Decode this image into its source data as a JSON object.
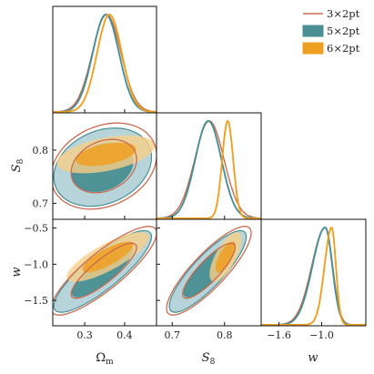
{
  "chart_data": {
    "type": "corner",
    "colors": {
      "3x2pt": "#c96a4f",
      "5x2pt": "#4a8f94",
      "6x2pt": "#f0a020",
      "fill_5x2pt": "#a9cdd2",
      "fill_6x2pt": "#f7cf88"
    },
    "legend": {
      "position": "top-right",
      "entries": [
        {
          "key": "3x2pt",
          "label": "3×2pt",
          "style": "line"
        },
        {
          "key": "5x2pt",
          "label": "5×2pt",
          "style": "patch"
        },
        {
          "key": "6x2pt",
          "label": "6×2pt",
          "style": "patch"
        }
      ]
    },
    "parameters": [
      {
        "key": "om",
        "label": "Ω",
        "sub": "m",
        "range": [
          0.22,
          0.48
        ],
        "ticks": [
          0.3,
          0.4
        ],
        "ticklabels": [
          "0.3",
          "0.4"
        ]
      },
      {
        "key": "s8",
        "label": "S",
        "sub": "8",
        "range": [
          0.67,
          0.87
        ],
        "ticks": [
          0.7,
          0.8
        ],
        "ticklabels": [
          "0.7",
          "0.8"
        ]
      },
      {
        "key": "w",
        "label": "w",
        "sub": "",
        "range": [
          -1.85,
          -0.38
        ],
        "ticks": [
          -1.5,
          -1.0,
          -0.5
        ],
        "ticklabels": [
          "−1.5",
          "−1.0",
          "−0.5"
        ],
        "ticks_diag": [
          -1.6,
          -1.0
        ],
        "ticklabels_diag": [
          "−1.6",
          "−1.0"
        ]
      }
    ],
    "marginals": {
      "om": [
        {
          "series": "3x2pt",
          "mean": 0.355,
          "sigma": 0.036
        },
        {
          "series": "5x2pt",
          "mean": 0.353,
          "sigma": 0.033
        },
        {
          "series": "6x2pt",
          "mean": 0.362,
          "sigma": 0.031
        }
      ],
      "s8": [
        {
          "series": "3x2pt",
          "mean": 0.771,
          "sigma": 0.028
        },
        {
          "series": "5x2pt",
          "mean": 0.769,
          "sigma": 0.025
        },
        {
          "series": "6x2pt",
          "mean": 0.806,
          "sigma": 0.0105
        }
      ],
      "w": [
        {
          "series": "3x2pt",
          "mean": -0.95,
          "sigma": 0.19,
          "skew": 0.55
        },
        {
          "series": "5x2pt",
          "mean": -0.95,
          "sigma": 0.18,
          "skew": 0.55
        },
        {
          "series": "6x2pt",
          "mean": -0.86,
          "sigma": 0.1,
          "skew": 0.6
        }
      ]
    },
    "contours": {
      "s8_om": [
        {
          "series": "5x2pt",
          "center": [
            0.345,
            0.768
          ],
          "sx": 0.05,
          "sy": 0.03,
          "rho": 0.25
        },
        {
          "series": "3x2pt",
          "center": [
            0.348,
            0.77
          ],
          "sx": 0.054,
          "sy": 0.033,
          "rho": 0.25
        },
        {
          "series": "6x2pt",
          "center": [
            0.353,
            0.792
          ],
          "sx": 0.05,
          "sy": 0.0145,
          "rho": 0.45
        }
      ],
      "w_om": [
        {
          "series": "5x2pt",
          "center": [
            0.345,
            -1.1
          ],
          "sx": 0.05,
          "sy": 0.23,
          "rho": 0.85
        },
        {
          "series": "3x2pt",
          "center": [
            0.348,
            -1.09
          ],
          "sx": 0.054,
          "sy": 0.25,
          "rho": 0.85
        },
        {
          "series": "6x2pt",
          "center": [
            0.358,
            -0.9
          ],
          "sx": 0.042,
          "sy": 0.14,
          "rho": 0.8
        }
      ],
      "w_s8": [
        {
          "series": "5x2pt",
          "center": [
            0.768,
            -1.1
          ],
          "sx": 0.03,
          "sy": 0.23,
          "rho": 0.85
        },
        {
          "series": "3x2pt",
          "center": [
            0.77,
            -1.09
          ],
          "sx": 0.033,
          "sy": 0.25,
          "rho": 0.85
        },
        {
          "series": "6x2pt",
          "center": [
            0.802,
            -0.9
          ],
          "sx": 0.0125,
          "sy": 0.14,
          "rho": 0.7
        }
      ]
    }
  }
}
